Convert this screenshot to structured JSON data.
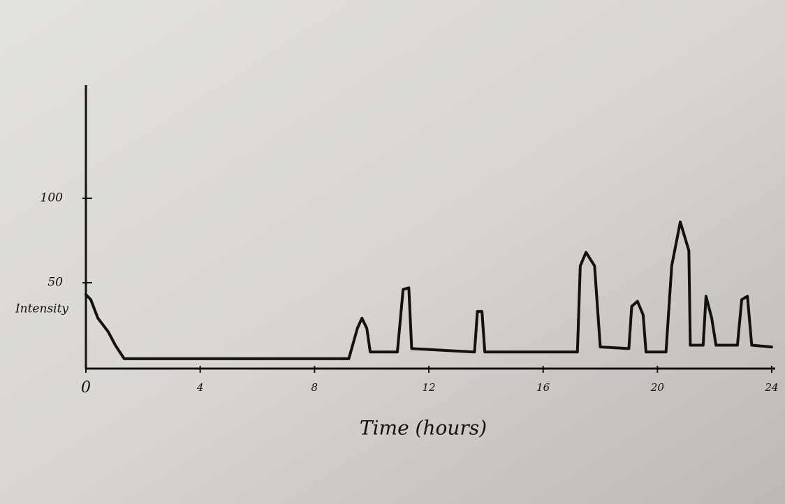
{
  "chart_data": {
    "type": "line",
    "x_label": "Time (hours)",
    "y_label": "Intensity",
    "x": [
      0,
      0.17,
      0.42,
      0.78,
      1.03,
      1.34,
      1.9,
      9.2,
      9.5,
      9.66,
      9.83,
      9.95,
      10.9,
      11.1,
      11.3,
      11.4,
      13.6,
      13.7,
      13.86,
      13.96,
      17.2,
      17.3,
      17.5,
      17.8,
      18.0,
      19.0,
      19.1,
      19.3,
      19.5,
      19.6,
      20.3,
      20.5,
      20.8,
      21.1,
      21.15,
      21.6,
      21.7,
      21.9,
      22.05,
      22.8,
      22.95,
      23.15,
      23.3,
      24
    ],
    "series": [
      {
        "color": "#111111",
        "values": [
          43,
          40,
          29,
          21,
          13,
          5,
          5,
          5,
          23,
          29,
          23,
          9,
          9,
          46,
          47,
          11,
          9,
          33,
          33,
          9,
          9,
          60,
          68,
          60,
          12,
          11,
          36,
          39,
          31,
          9,
          9,
          60,
          86,
          69,
          13,
          13,
          42,
          29,
          13,
          13,
          40,
          42,
          13,
          12
        ]
      }
    ],
    "xlim": [
      0,
      24
    ],
    "xticks": [
      0,
      4,
      8,
      12,
      16,
      20,
      24
    ],
    "ylim": [
      0,
      167
    ],
    "yticks": [
      50,
      100
    ],
    "grid": false
  }
}
